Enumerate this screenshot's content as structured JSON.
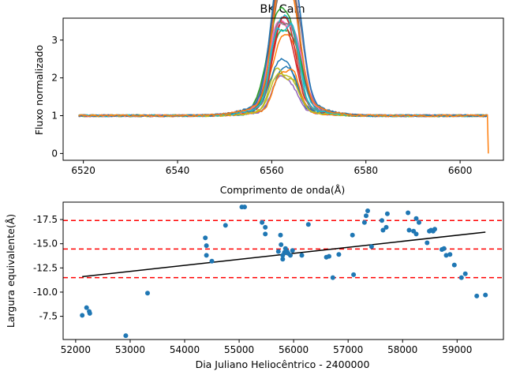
{
  "chart_data": [
    {
      "type": "line",
      "title": "BK Cam",
      "xlabel": "Comprimento de onda(Å)",
      "ylabel": "Fluxo normalizado",
      "xlim": [
        6515.7,
        6609.2
      ],
      "ylim": [
        -0.18,
        3.58
      ],
      "xticks": [
        6520,
        6540,
        6560,
        6580,
        6600
      ],
      "yticks": [
        0,
        1,
        2,
        3
      ],
      "grid": false,
      "legend": "none",
      "x_range": [
        6519,
        6606
      ],
      "series_count": 22,
      "series_colors": [
        "#1f77b4",
        "#ff7f0e",
        "#2ca02c",
        "#d62728",
        "#9467bd",
        "#8c564b",
        "#e377c2",
        "#7f7f7f",
        "#bcbd22",
        "#17becf"
      ],
      "profile_shape": "double-peaked H-alpha emission centered near 6562.8 Å; continuum ~1.0; peaks between ~1.8 and ~3.4; one series drops to ~0 at 6606"
    },
    {
      "type": "scatter",
      "title": "",
      "xlabel": "Dia Juliano Heliocêntrico - 2400000",
      "ylabel": "Largura equivalente(Å)",
      "xlim": [
        51770,
        59850
      ],
      "ylim": [
        -5.1,
        -19.3
      ],
      "y_inverted": true,
      "xticks": [
        52000,
        53000,
        54000,
        55000,
        56000,
        57000,
        58000,
        59000
      ],
      "yticks": [
        -7.5,
        -10.0,
        -12.5,
        -15.0,
        -17.5
      ],
      "point_color": "#1f77b4",
      "points": [
        [
          52120,
          -7.6
        ],
        [
          52200,
          -8.4
        ],
        [
          52250,
          -8.0
        ],
        [
          52260,
          -7.8
        ],
        [
          52920,
          -5.5
        ],
        [
          53320,
          -9.9
        ],
        [
          54380,
          -15.6
        ],
        [
          54400,
          -14.8
        ],
        [
          54400,
          -13.8
        ],
        [
          54500,
          -13.2
        ],
        [
          54750,
          -16.9
        ],
        [
          55050,
          -18.8
        ],
        [
          55100,
          -18.8
        ],
        [
          55420,
          -17.2
        ],
        [
          55480,
          -16.7
        ],
        [
          55480,
          -16.0
        ],
        [
          55720,
          -14.2
        ],
        [
          55760,
          -15.9
        ],
        [
          55770,
          -14.9
        ],
        [
          55800,
          -13.4
        ],
        [
          55800,
          -13.8
        ],
        [
          55830,
          -14.1
        ],
        [
          55850,
          -14.5
        ],
        [
          55880,
          -14.2
        ],
        [
          55900,
          -14.0
        ],
        [
          55940,
          -13.8
        ],
        [
          55980,
          -14.3
        ],
        [
          56150,
          -13.8
        ],
        [
          56270,
          -17.0
        ],
        [
          56600,
          -13.6
        ],
        [
          56650,
          -13.7
        ],
        [
          56720,
          -11.5
        ],
        [
          56830,
          -13.9
        ],
        [
          57080,
          -15.9
        ],
        [
          57100,
          -11.8
        ],
        [
          57300,
          -17.2
        ],
        [
          57330,
          -17.9
        ],
        [
          57360,
          -18.4
        ],
        [
          57430,
          -14.7
        ],
        [
          57620,
          -17.4
        ],
        [
          57640,
          -16.4
        ],
        [
          57700,
          -16.7
        ],
        [
          57720,
          -18.1
        ],
        [
          58100,
          -18.2
        ],
        [
          58120,
          -16.4
        ],
        [
          58200,
          -16.3
        ],
        [
          58250,
          -16.0
        ],
        [
          58250,
          -17.6
        ],
        [
          58300,
          -17.2
        ],
        [
          58450,
          -15.1
        ],
        [
          58490,
          -16.3
        ],
        [
          58520,
          -16.4
        ],
        [
          58560,
          -16.3
        ],
        [
          58590,
          -16.5
        ],
        [
          58720,
          -14.4
        ],
        [
          58760,
          -14.5
        ],
        [
          58800,
          -13.8
        ],
        [
          58870,
          -13.9
        ],
        [
          58950,
          -12.8
        ],
        [
          59080,
          -11.5
        ],
        [
          59150,
          -11.9
        ],
        [
          59360,
          -9.6
        ],
        [
          59520,
          -9.7
        ]
      ],
      "fit_line": {
        "color": "#000000",
        "x": [
          52120,
          59520
        ],
        "y": [
          -11.6,
          -16.2
        ]
      },
      "hlines": [
        {
          "y": -17.4,
          "color": "#ff0000",
          "style": "dashed"
        },
        {
          "y": -14.45,
          "color": "#ff0000",
          "style": "dashed"
        },
        {
          "y": -11.5,
          "color": "#ff0000",
          "style": "dashed"
        }
      ],
      "grid": false,
      "legend": "none"
    }
  ]
}
